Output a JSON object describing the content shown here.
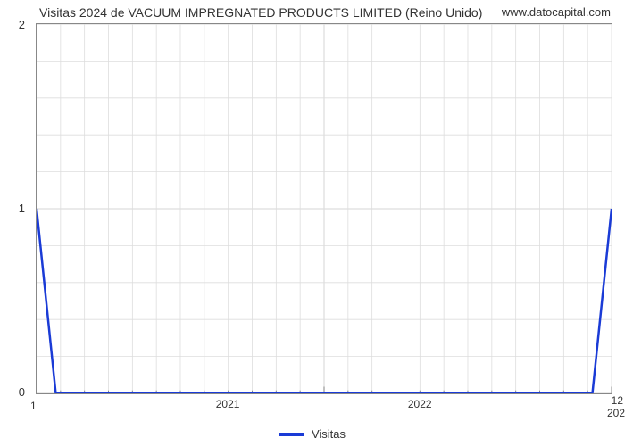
{
  "title": "Visitas 2024 de VACUUM IMPREGNATED PRODUCTS LIMITED (Reino Unido)",
  "source": "www.datocapital.com",
  "chart": {
    "type": "line",
    "background_color": "#ffffff",
    "grid_color": "#dddddd",
    "axis_color": "#888888",
    "tick_color": "#888888",
    "line_color": "#1a3bd6",
    "line_width": 2.5,
    "x": {
      "min": 0,
      "max": 24,
      "major_every": 12,
      "minor_every": 1,
      "major_labels": [
        "2021",
        "2022"
      ],
      "left_cap": "1",
      "right_cap_top": "12",
      "right_cap_bottom": "202"
    },
    "y": {
      "min": 0,
      "max": 2,
      "major_ticks": [
        0,
        1,
        2
      ],
      "minor_step": 0.2
    },
    "series": {
      "name": "Visitas",
      "points": [
        [
          0,
          1.0
        ],
        [
          0.8,
          0.0
        ],
        [
          23.2,
          0.0
        ],
        [
          24,
          1.0
        ]
      ]
    }
  },
  "legend_label": "Visitas",
  "fontsize": {
    "title": 14,
    "tick": 12,
    "legend": 13
  }
}
